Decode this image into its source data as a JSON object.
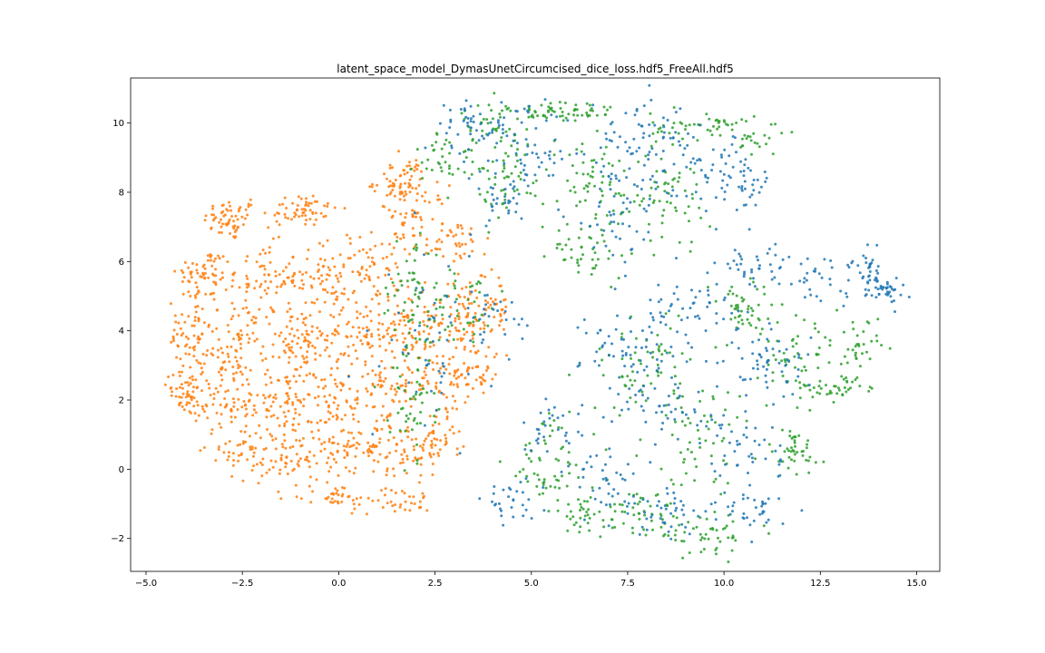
{
  "chart_data": {
    "type": "scatter",
    "title": "latent_space_model_DymasUnetCircumcised_dice_loss.hdf5_FreeAll.hdf5",
    "xlabel": "",
    "ylabel": "",
    "xlim": [
      -5.4,
      15.6
    ],
    "ylim": [
      -2.95,
      11.3
    ],
    "grid": false,
    "legend": "none",
    "x_ticks": [
      {
        "value": -5.0,
        "label": "−5.0"
      },
      {
        "value": -2.5,
        "label": "−2.5"
      },
      {
        "value": 0.0,
        "label": "0.0"
      },
      {
        "value": 2.5,
        "label": "2.5"
      },
      {
        "value": 5.0,
        "label": "5.0"
      },
      {
        "value": 7.5,
        "label": "7.5"
      },
      {
        "value": 10.0,
        "label": "10.0"
      },
      {
        "value": 12.5,
        "label": "12.5"
      },
      {
        "value": 15.0,
        "label": "15.0"
      }
    ],
    "y_ticks": [
      {
        "value": -2,
        "label": "−2"
      },
      {
        "value": 0,
        "label": "0"
      },
      {
        "value": 2,
        "label": "2"
      },
      {
        "value": 4,
        "label": "4"
      },
      {
        "value": 6,
        "label": "6"
      },
      {
        "value": 8,
        "label": "8"
      },
      {
        "value": 10,
        "label": "10"
      }
    ],
    "series": [
      {
        "color": "#ff7f0e",
        "clusters": [
          {
            "cx": -2.8,
            "cy": 7.2,
            "sx": 0.35,
            "sy": 0.3,
            "n": 60
          },
          {
            "cx": -1.0,
            "cy": 7.5,
            "sx": 0.5,
            "sy": 0.25,
            "n": 60
          },
          {
            "cx": -3.5,
            "cy": 5.6,
            "sx": 0.35,
            "sy": 0.4,
            "n": 60
          },
          {
            "cx": -2.0,
            "cy": 5.5,
            "sx": 0.5,
            "sy": 0.5,
            "n": 70
          },
          {
            "cx": -0.4,
            "cy": 5.6,
            "sx": 0.45,
            "sy": 0.5,
            "n": 70
          },
          {
            "cx": 0.9,
            "cy": 5.8,
            "sx": 0.4,
            "sy": 0.5,
            "n": 50
          },
          {
            "cx": 1.6,
            "cy": 8.3,
            "sx": 0.35,
            "sy": 0.35,
            "n": 60
          },
          {
            "cx": 1.9,
            "cy": 7.2,
            "sx": 0.45,
            "sy": 0.5,
            "n": 60
          },
          {
            "cx": 3.1,
            "cy": 6.6,
            "sx": 0.4,
            "sy": 0.35,
            "n": 40
          },
          {
            "cx": -3.9,
            "cy": 3.8,
            "sx": 0.25,
            "sy": 0.6,
            "n": 60
          },
          {
            "cx": -2.5,
            "cy": 3.8,
            "sx": 0.55,
            "sy": 0.55,
            "n": 80
          },
          {
            "cx": -1.0,
            "cy": 3.6,
            "sx": 0.5,
            "sy": 0.55,
            "n": 80
          },
          {
            "cx": 0.5,
            "cy": 3.8,
            "sx": 0.55,
            "sy": 0.55,
            "n": 80
          },
          {
            "cx": 1.8,
            "cy": 4.3,
            "sx": 0.5,
            "sy": 0.6,
            "n": 70
          },
          {
            "cx": 3.2,
            "cy": 4.4,
            "sx": 0.45,
            "sy": 0.55,
            "n": 70
          },
          {
            "cx": 4.0,
            "cy": 4.6,
            "sx": 0.25,
            "sy": 0.7,
            "n": 40
          },
          {
            "cx": -4.0,
            "cy": 2.1,
            "sx": 0.25,
            "sy": 0.3,
            "n": 40
          },
          {
            "cx": -3.0,
            "cy": 2.2,
            "sx": 0.5,
            "sy": 0.55,
            "n": 80
          },
          {
            "cx": -1.6,
            "cy": 2.0,
            "sx": 0.5,
            "sy": 0.55,
            "n": 80
          },
          {
            "cx": -0.1,
            "cy": 2.0,
            "sx": 0.5,
            "sy": 0.55,
            "n": 80
          },
          {
            "cx": 1.4,
            "cy": 2.4,
            "sx": 0.5,
            "sy": 0.55,
            "n": 70
          },
          {
            "cx": 2.8,
            "cy": 2.6,
            "sx": 0.45,
            "sy": 0.55,
            "n": 60
          },
          {
            "cx": 3.7,
            "cy": 2.8,
            "sx": 0.25,
            "sy": 0.4,
            "n": 30
          },
          {
            "cx": -2.5,
            "cy": 0.5,
            "sx": 0.45,
            "sy": 0.4,
            "n": 50
          },
          {
            "cx": -1.0,
            "cy": 0.4,
            "sx": 0.5,
            "sy": 0.4,
            "n": 60
          },
          {
            "cx": 0.5,
            "cy": 0.5,
            "sx": 0.5,
            "sy": 0.4,
            "n": 60
          },
          {
            "cx": 1.8,
            "cy": 0.6,
            "sx": 0.5,
            "sy": 0.4,
            "n": 60
          },
          {
            "cx": 2.6,
            "cy": 0.9,
            "sx": 0.3,
            "sy": 0.35,
            "n": 30
          },
          {
            "cx": 0.0,
            "cy": -0.8,
            "sx": 0.5,
            "sy": 0.2,
            "n": 40
          },
          {
            "cx": 1.6,
            "cy": -0.9,
            "sx": 0.4,
            "sy": 0.2,
            "n": 30
          }
        ]
      },
      {
        "color": "#2ca02c",
        "clusters": [
          {
            "cx": 4.0,
            "cy": 10.0,
            "sx": 0.4,
            "sy": 0.3,
            "n": 40
          },
          {
            "cx": 5.8,
            "cy": 10.3,
            "sx": 0.7,
            "sy": 0.2,
            "n": 60
          },
          {
            "cx": 9.5,
            "cy": 9.9,
            "sx": 0.7,
            "sy": 0.2,
            "n": 50
          },
          {
            "cx": 10.9,
            "cy": 9.5,
            "sx": 0.3,
            "sy": 0.2,
            "n": 20
          },
          {
            "cx": 2.8,
            "cy": 9.0,
            "sx": 0.4,
            "sy": 0.4,
            "n": 40
          },
          {
            "cx": 4.5,
            "cy": 8.5,
            "sx": 0.45,
            "sy": 0.5,
            "n": 50
          },
          {
            "cx": 6.5,
            "cy": 8.2,
            "sx": 0.7,
            "sy": 0.7,
            "n": 60
          },
          {
            "cx": 8.5,
            "cy": 7.8,
            "sx": 0.6,
            "sy": 0.7,
            "n": 60
          },
          {
            "cx": 6.5,
            "cy": 6.3,
            "sx": 0.5,
            "sy": 0.4,
            "n": 40
          },
          {
            "cx": 1.9,
            "cy": 5.0,
            "sx": 0.4,
            "sy": 1.0,
            "n": 60
          },
          {
            "cx": 3.3,
            "cy": 4.8,
            "sx": 0.45,
            "sy": 0.7,
            "n": 40
          },
          {
            "cx": 1.9,
            "cy": 2.0,
            "sx": 0.3,
            "sy": 0.8,
            "n": 50
          },
          {
            "cx": 10.5,
            "cy": 4.5,
            "sx": 0.6,
            "sy": 0.5,
            "n": 50
          },
          {
            "cx": 12.0,
            "cy": 3.2,
            "sx": 0.6,
            "sy": 0.6,
            "n": 50
          },
          {
            "cx": 13.4,
            "cy": 3.4,
            "sx": 0.3,
            "sy": 0.5,
            "n": 40
          },
          {
            "cx": 12.8,
            "cy": 2.3,
            "sx": 0.6,
            "sy": 0.15,
            "n": 30
          },
          {
            "cx": 8.0,
            "cy": 3.0,
            "sx": 0.8,
            "sy": 0.7,
            "n": 60
          },
          {
            "cx": 9.5,
            "cy": 1.0,
            "sx": 0.8,
            "sy": 0.7,
            "n": 60
          },
          {
            "cx": 11.8,
            "cy": 0.5,
            "sx": 0.35,
            "sy": 0.5,
            "n": 40
          },
          {
            "cx": 5.5,
            "cy": 0.2,
            "sx": 0.6,
            "sy": 0.7,
            "n": 60
          },
          {
            "cx": 6.5,
            "cy": -1.3,
            "sx": 0.5,
            "sy": 0.3,
            "n": 40
          },
          {
            "cx": 9.5,
            "cy": -1.9,
            "sx": 0.7,
            "sy": 0.25,
            "n": 50
          },
          {
            "cx": 7.8,
            "cy": -1.3,
            "sx": 0.6,
            "sy": 0.3,
            "n": 40
          }
        ]
      },
      {
        "color": "#1f77b4",
        "clusters": [
          {
            "cx": 3.5,
            "cy": 9.8,
            "sx": 0.5,
            "sy": 0.5,
            "n": 50
          },
          {
            "cx": 5.0,
            "cy": 9.2,
            "sx": 0.5,
            "sy": 0.6,
            "n": 50
          },
          {
            "cx": 7.8,
            "cy": 9.6,
            "sx": 0.7,
            "sy": 0.5,
            "n": 60
          },
          {
            "cx": 9.5,
            "cy": 8.5,
            "sx": 0.8,
            "sy": 0.6,
            "n": 60
          },
          {
            "cx": 10.6,
            "cy": 8.3,
            "sx": 0.3,
            "sy": 0.4,
            "n": 30
          },
          {
            "cx": 7.2,
            "cy": 7.4,
            "sx": 0.6,
            "sy": 0.7,
            "n": 50
          },
          {
            "cx": 4.2,
            "cy": 7.8,
            "sx": 0.4,
            "sy": 0.4,
            "n": 30
          },
          {
            "cx": 2.6,
            "cy": 3.8,
            "sx": 0.7,
            "sy": 1.2,
            "n": 60
          },
          {
            "cx": 4.2,
            "cy": 4.3,
            "sx": 0.3,
            "sy": 0.4,
            "n": 20
          },
          {
            "cx": 9.0,
            "cy": 4.5,
            "sx": 0.8,
            "sy": 0.6,
            "n": 60
          },
          {
            "cx": 10.8,
            "cy": 5.8,
            "sx": 0.5,
            "sy": 0.4,
            "n": 40
          },
          {
            "cx": 12.5,
            "cy": 5.6,
            "sx": 0.5,
            "sy": 0.3,
            "n": 30
          },
          {
            "cx": 13.7,
            "cy": 5.7,
            "sx": 0.25,
            "sy": 0.4,
            "n": 40
          },
          {
            "cx": 14.3,
            "cy": 5.2,
            "sx": 0.2,
            "sy": 0.2,
            "n": 30
          },
          {
            "cx": 7.5,
            "cy": 3.5,
            "sx": 0.6,
            "sy": 0.6,
            "n": 50
          },
          {
            "cx": 11.2,
            "cy": 3.0,
            "sx": 0.5,
            "sy": 0.5,
            "n": 50
          },
          {
            "cx": 8.5,
            "cy": 1.8,
            "sx": 0.7,
            "sy": 0.6,
            "n": 50
          },
          {
            "cx": 10.5,
            "cy": 0.5,
            "sx": 0.5,
            "sy": 0.8,
            "n": 50
          },
          {
            "cx": 10.8,
            "cy": -1.3,
            "sx": 0.4,
            "sy": 0.3,
            "n": 30
          },
          {
            "cx": 5.5,
            "cy": 1.2,
            "sx": 0.4,
            "sy": 0.4,
            "n": 30
          },
          {
            "cx": 7.0,
            "cy": -0.5,
            "sx": 0.6,
            "sy": 0.5,
            "n": 40
          },
          {
            "cx": 8.6,
            "cy": -1.2,
            "sx": 0.6,
            "sy": 0.35,
            "n": 40
          },
          {
            "cx": 4.5,
            "cy": -1.0,
            "sx": 0.4,
            "sy": 0.35,
            "n": 30
          }
        ]
      }
    ]
  }
}
